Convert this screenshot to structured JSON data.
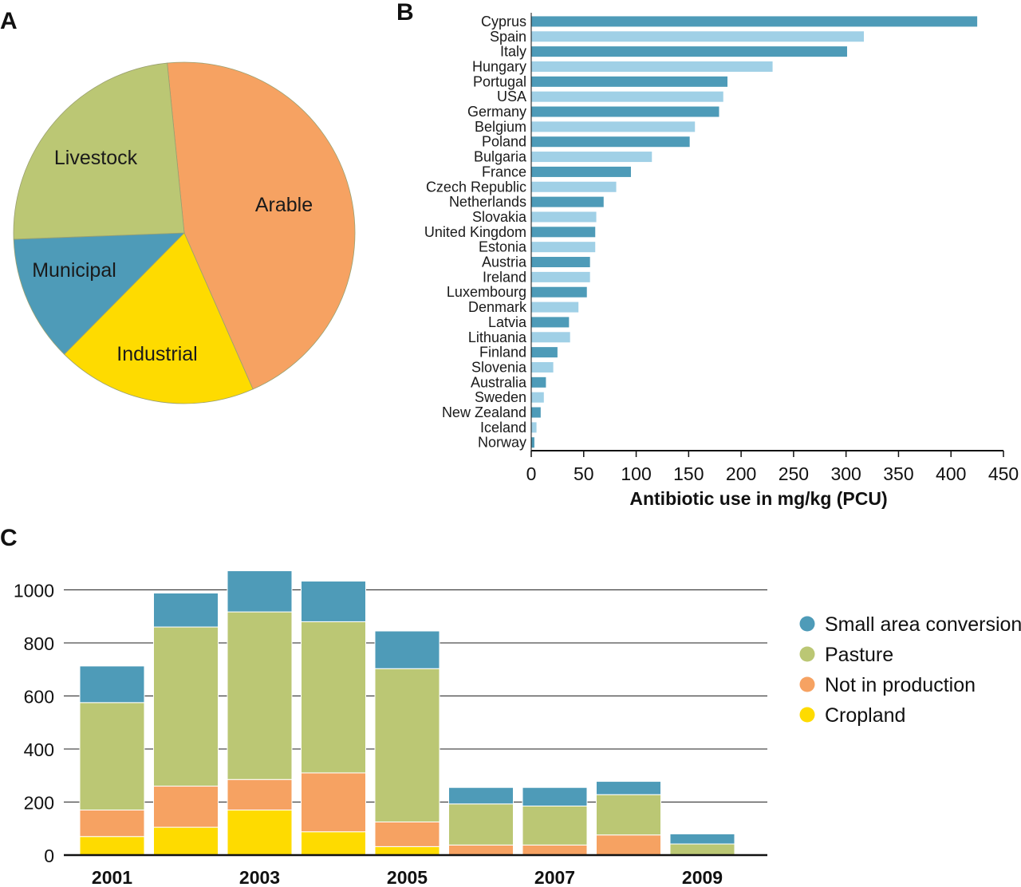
{
  "panels": {
    "a": "A",
    "b": "B",
    "c": "C"
  },
  "chart_data": [
    {
      "panel": "A",
      "type": "pie",
      "labels": [
        "Arable",
        "Industrial",
        "Municipal",
        "Livestock"
      ],
      "values": [
        45,
        19,
        12,
        24
      ],
      "colors": [
        "#f6a262",
        "#fedb00",
        "#4e9bb8",
        "#bbc774"
      ]
    },
    {
      "panel": "B",
      "type": "bar",
      "orientation": "horizontal",
      "categories": [
        "Cyprus",
        "Spain",
        "Italy",
        "Hungary",
        "Portugal",
        "USA",
        "Germany",
        "Belgium",
        "Poland",
        "Bulgaria",
        "France",
        "Czech Republic",
        "Netherlands",
        "Slovakia",
        "United Kingdom",
        "Estonia",
        "Austria",
        "Ireland",
        "Luxembourg",
        "Denmark",
        "Latvia",
        "Lithuania",
        "Finland",
        "Slovenia",
        "Australia",
        "Sweden",
        "New Zealand",
        "Iceland",
        "Norway"
      ],
      "values": [
        425,
        317,
        301,
        230,
        187,
        183,
        179,
        156,
        151,
        115,
        95,
        81,
        69,
        62,
        61,
        61,
        56,
        56,
        53,
        45,
        36,
        37,
        25,
        21,
        14,
        12,
        9,
        5,
        3
      ],
      "xticks": [
        "0",
        "50",
        "100",
        "150",
        "200",
        "250",
        "300",
        "350",
        "400",
        "450"
      ],
      "xlim": [
        0,
        450
      ],
      "xlabel": "Antibiotic use in mg/kg (PCU)",
      "colors": [
        "#4e9bb8",
        "#a0d0e6"
      ]
    },
    {
      "panel": "C",
      "type": "bar",
      "stacked": true,
      "categories": [
        "2001",
        "2002",
        "2003",
        "2004",
        "2005",
        "2006",
        "2007",
        "2008",
        "2009"
      ],
      "xtick_labels": [
        "2001",
        "",
        "2003",
        "",
        "2005",
        "",
        "2007",
        "",
        "2009"
      ],
      "series": [
        {
          "name": "Cropland",
          "color": "#fedb00",
          "values": [
            70,
            105,
            170,
            88,
            32,
            0,
            0,
            0,
            0
          ]
        },
        {
          "name": "Not in production",
          "color": "#f6a262",
          "values": [
            100,
            155,
            115,
            222,
            93,
            38,
            38,
            76,
            0
          ]
        },
        {
          "name": "Pasture",
          "color": "#bbc774",
          "values": [
            405,
            600,
            632,
            570,
            578,
            155,
            147,
            152,
            42
          ]
        },
        {
          "name": "Small area conversion",
          "color": "#4e9bb8",
          "values": [
            138,
            128,
            155,
            153,
            142,
            62,
            70,
            50,
            38
          ]
        }
      ],
      "yticks": [
        "0",
        "200",
        "400",
        "600",
        "800",
        "1000"
      ],
      "ylim": [
        0,
        1100
      ],
      "legend": [
        "Small area conversion",
        "Pasture",
        "Not in production",
        "Cropland"
      ],
      "legend_position": "right"
    }
  ]
}
